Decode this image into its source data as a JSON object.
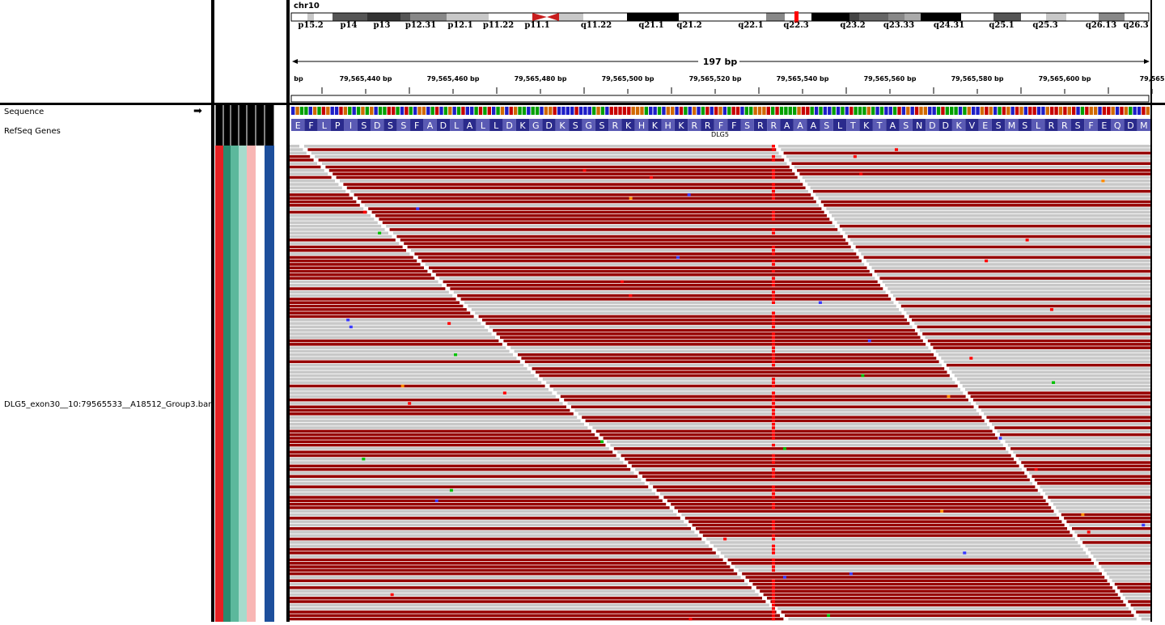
{
  "chromosome": "chr10",
  "ruler": {
    "span_label": "197 bp",
    "unit_label": "bp",
    "ticks": [
      "79,565,440 bp",
      "79,565,460 bp",
      "79,565,480 bp",
      "79,565,500 bp",
      "79,565,520 bp",
      "79,565,540 bp",
      "79,565,560 bp",
      "79,565,580 bp",
      "79,565,600 bp",
      "79,565"
    ]
  },
  "ideogram_bands": [
    "p15.2",
    "p14",
    "p13",
    "p12.31",
    "p12.1",
    "p11.22",
    "p11.1",
    "q11.22",
    "q21.1",
    "q21.2",
    "q22.1",
    "q22.3",
    "q23.2",
    "q23.33",
    "q24.31",
    "q25.1",
    "q25.3",
    "q26.13",
    "q26.3"
  ],
  "tracks": {
    "sequence": "Sequence",
    "refseq": "RefSeq Genes",
    "bam": "DLG5_exon30__10:79565533__A18512_Group3.bam"
  },
  "gene": {
    "name": "DLG5",
    "amino_acids": [
      "E",
      "F",
      "L",
      "P",
      "I",
      "S",
      "D",
      "S",
      "S",
      "F",
      "A",
      "D",
      "L",
      "A",
      "L",
      "L",
      "D",
      "K",
      "G",
      "D",
      "K",
      "S",
      "G",
      "S",
      "R",
      "K",
      "H",
      "K",
      "H",
      "K",
      "R",
      "R",
      "F",
      "F",
      "S",
      "R",
      "R",
      "A",
      "A",
      "A",
      "S",
      "L",
      "T",
      "K",
      "T",
      "A",
      "S",
      "N",
      "D",
      "D",
      "K",
      "V",
      "E",
      "S",
      "M",
      "S",
      "L",
      "R",
      "R",
      "S",
      "F",
      "E",
      "Q",
      "D",
      "M"
    ]
  },
  "colors": {
    "forward_read": "#960000",
    "reverse_read": "#c8c8c8",
    "mismatch": "#ff0000",
    "aa_dark": "#2a2a8c",
    "aa_light": "#5a5ab4"
  },
  "attribute_colors": [
    "#e52124",
    "#2b8a6e",
    "#5cb89c",
    "#a6dbcc",
    "#f8b6b4",
    "#ffffff",
    "#1d4f9c"
  ]
}
